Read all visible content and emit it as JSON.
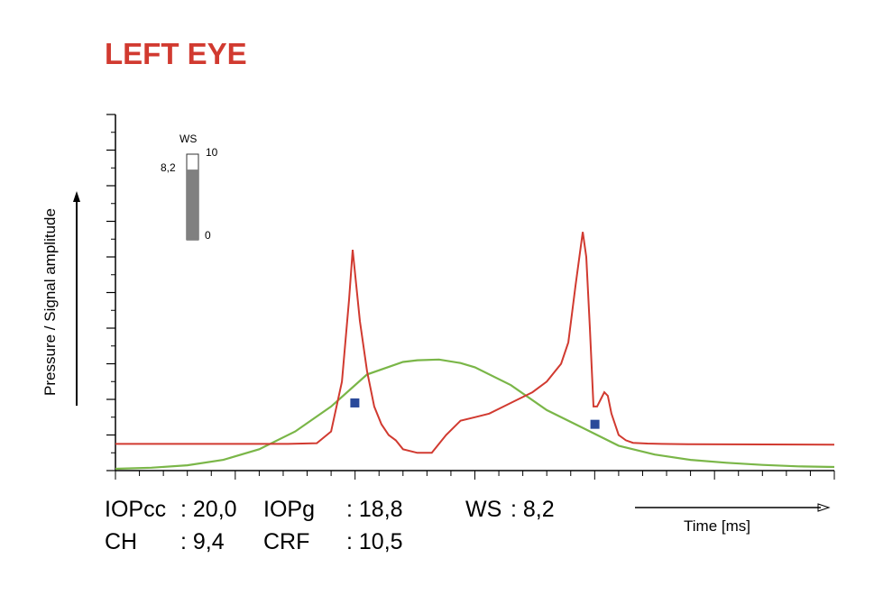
{
  "title": "LEFT EYE",
  "colors": {
    "title": "#d13a30",
    "pressure_curve": "#d13a30",
    "signal_curve": "#7ab648",
    "markers": "#2a4a9a",
    "ws_bar_fill": "#808080"
  },
  "chart_data": {
    "type": "line",
    "xlabel": "Time [ms]",
    "ylabel": "Pressure / Signal amplitude",
    "xlim": [
      0,
      100
    ],
    "ylim": [
      0,
      100
    ],
    "grid": false,
    "series": [
      {
        "key": "pressure",
        "x": [
          0,
          24,
          28,
          30,
          31.5,
          32.5,
          33,
          34,
          35,
          36,
          37,
          38,
          39,
          40,
          42,
          44,
          46,
          48,
          50,
          52,
          54,
          56,
          58,
          60,
          62,
          63,
          64,
          65,
          65.5,
          66,
          66.5,
          67,
          67.5,
          68,
          68.5,
          69,
          70,
          71,
          72,
          74,
          76,
          80,
          100
        ],
        "y": [
          7.5,
          7.5,
          7.7,
          11,
          25,
          48,
          62,
          42,
          28,
          18,
          13,
          10,
          8.5,
          6,
          5,
          5,
          10,
          14,
          15,
          16,
          18,
          20,
          22,
          25,
          30,
          36,
          52,
          67,
          60,
          40,
          18,
          18,
          20,
          22,
          21,
          16,
          10,
          8.5,
          7.8,
          7.6,
          7.5,
          7.4,
          7.3
        ]
      },
      {
        "key": "signal",
        "x": [
          0,
          5,
          10,
          15,
          20,
          25,
          30,
          35,
          40,
          42,
          45,
          48,
          50,
          55,
          60,
          65,
          70,
          75,
          80,
          85,
          90,
          95,
          100
        ],
        "y": [
          0.5,
          0.8,
          1.5,
          3,
          6,
          11,
          18,
          27,
          30.5,
          31,
          31.2,
          30.2,
          29,
          24,
          17,
          12,
          7,
          4.5,
          3,
          2.2,
          1.6,
          1.2,
          1
        ]
      }
    ],
    "markers": [
      {
        "x": 33.3,
        "y": 19
      },
      {
        "x": 66.7,
        "y": 13
      }
    ],
    "ws_gauge": {
      "label": "WS",
      "min_label": "0",
      "max_label": "10",
      "value_label": "8,2",
      "min": 0,
      "max": 10,
      "value": 8.2
    }
  },
  "readouts": {
    "iopcc_label": "IOPcc",
    "iopcc_value": ":  20,0",
    "iopg_label": "IOPg",
    "iopg_value": ":  18,8",
    "ws_label": "WS",
    "ws_value": ": 8,2",
    "ch_label": "CH",
    "ch_value": ":  9,4",
    "crf_label": "CRF",
    "crf_value": ":  10,5"
  }
}
